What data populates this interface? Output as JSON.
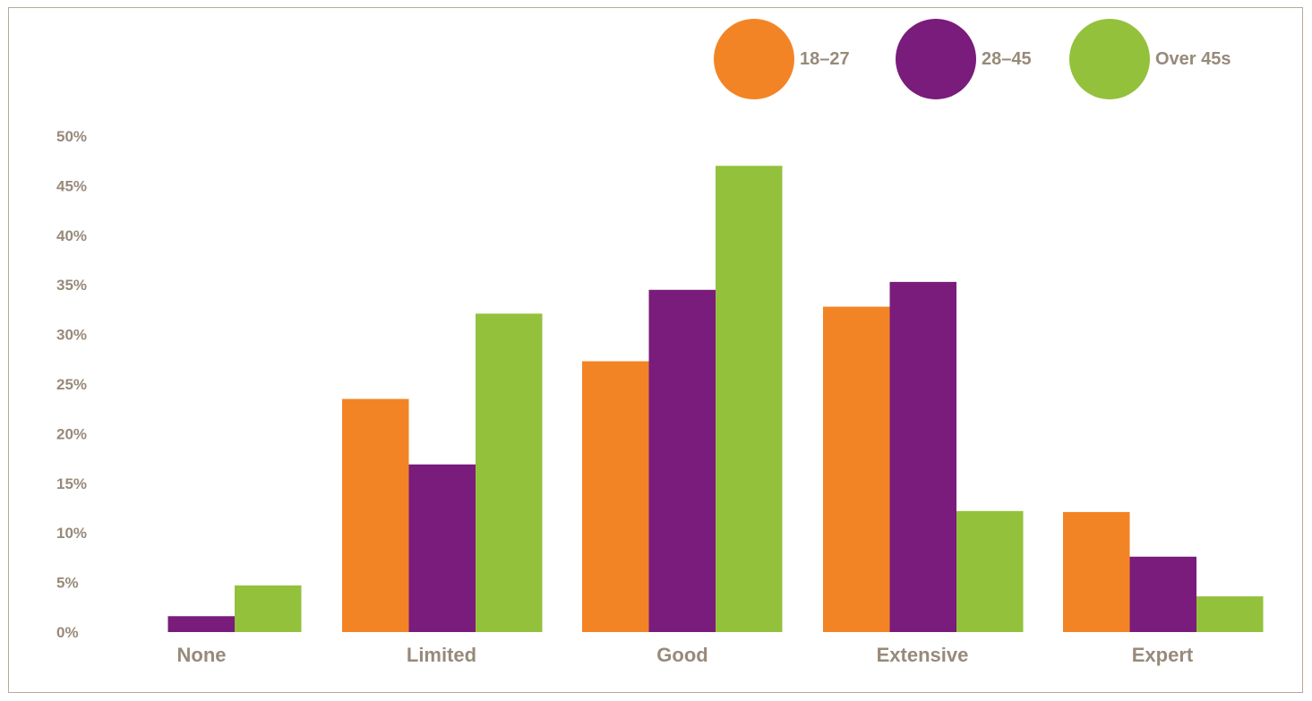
{
  "colors": {
    "series": [
      "#f38425",
      "#791c7b",
      "#93c13c"
    ],
    "text": "#978a7a",
    "frame": "#b5aa9c"
  },
  "chart_data": {
    "type": "bar",
    "categories": [
      "None",
      "Limited",
      "Good",
      "Extensive",
      "Expert"
    ],
    "series": [
      {
        "name": "18–27",
        "values": [
          0,
          23.5,
          27.3,
          32.8,
          12.1
        ]
      },
      {
        "name": "28–45",
        "values": [
          1.6,
          16.9,
          34.5,
          35.3,
          7.6
        ]
      },
      {
        "name": "Over 45s",
        "values": [
          4.7,
          32.1,
          47.0,
          12.2,
          3.6
        ]
      }
    ],
    "yticks": [
      "0%",
      "5%",
      "10%",
      "15%",
      "20%",
      "25%",
      "30%",
      "35%",
      "40%",
      "45%",
      "50%"
    ],
    "ylim": [
      0,
      50
    ],
    "grid": false,
    "legend_position": "top-right"
  }
}
